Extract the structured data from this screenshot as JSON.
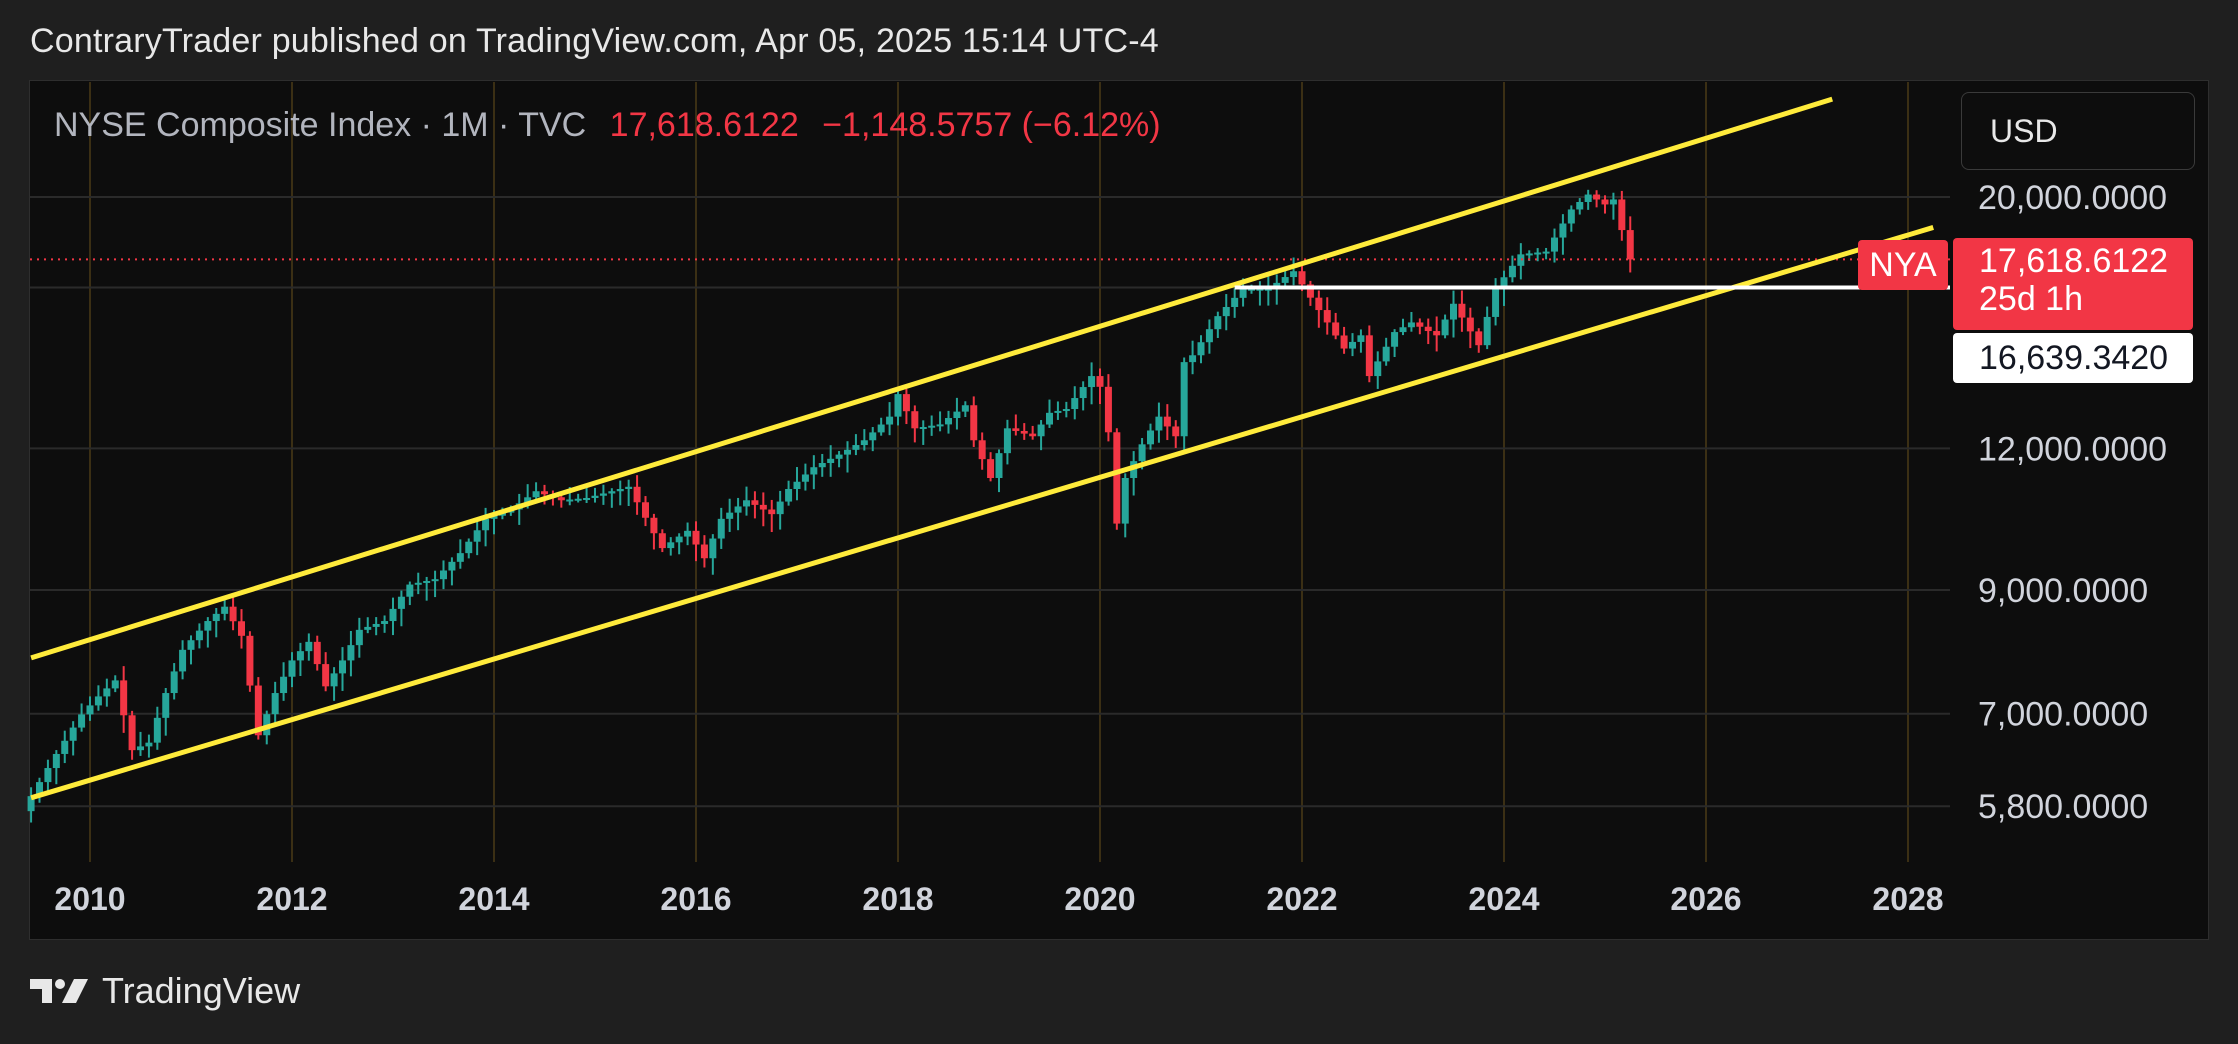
{
  "header": {
    "publisher": "ContraryTrader published on TradingView.com, Apr 05, 2025 15:14 UTC-4"
  },
  "legend": {
    "symbol": "NYSE Composite Index · 1M · TVC",
    "last": "17,618.6122",
    "change": "−1,148.5757 (−6.12%)"
  },
  "toolbar": {
    "currency": "USD"
  },
  "price_scale": {
    "ticks": [
      "20,000.0000",
      "12,000.0000",
      "9,000.0000",
      "7,000.0000",
      "5,800.0000"
    ],
    "symbol_tag": "NYA",
    "last_price": "17,618.6122",
    "countdown": "25d 1h",
    "line_price": "16,639.3420"
  },
  "footer": {
    "brand": "TradingView"
  },
  "colors": {
    "up": "#26a69a",
    "down": "#f23645",
    "channel": "#ffeb3b",
    "horizontal_line": "#ffffff",
    "grid": "#2a2a2a",
    "vertical_grid": "#3b2f14"
  },
  "chart_data": {
    "type": "candlestick",
    "interval": "1M",
    "scale": "log",
    "x_ticks": [
      "2010",
      "2012",
      "2014",
      "2016",
      "2018",
      "2020",
      "2022",
      "2024",
      "2026",
      "2028"
    ],
    "x_range": [
      "2009-06",
      "2028-04"
    ],
    "y_ticks": [
      20000,
      12000,
      9000,
      7000,
      5800
    ],
    "last_price": 17618.6122,
    "horizontal_line": {
      "price": 16639.342,
      "from": "2021-05"
    },
    "channel_upper": {
      "from": [
        "2009-06",
        7840
      ],
      "to": [
        "2027-04",
        24400
      ]
    },
    "channel_lower": {
      "from": [
        "2009-06",
        5900
      ],
      "to": [
        "2028-04",
        18800
      ]
    },
    "closes": [
      [
        "2009-06",
        5920
      ],
      [
        "2009-09",
        6450
      ],
      [
        "2009-12",
        6990
      ],
      [
        "2010-02",
        7250
      ],
      [
        "2010-04",
        7490
      ],
      [
        "2010-06",
        6500
      ],
      [
        "2010-08",
        6600
      ],
      [
        "2010-10",
        7300
      ],
      [
        "2010-12",
        7970
      ],
      [
        "2011-03",
        8450
      ],
      [
        "2011-05",
        8700
      ],
      [
        "2011-07",
        8200
      ],
      [
        "2011-09",
        6700
      ],
      [
        "2011-11",
        7300
      ],
      [
        "2012-01",
        7800
      ],
      [
        "2012-03",
        8100
      ],
      [
        "2012-05",
        7400
      ],
      [
        "2012-07",
        7800
      ],
      [
        "2012-09",
        8300
      ],
      [
        "2012-12",
        8450
      ],
      [
        "2013-03",
        9100
      ],
      [
        "2013-06",
        9200
      ],
      [
        "2013-09",
        9700
      ],
      [
        "2013-12",
        10400
      ],
      [
        "2014-03",
        10600
      ],
      [
        "2014-06",
        11000
      ],
      [
        "2014-09",
        10800
      ],
      [
        "2014-12",
        10850
      ],
      [
        "2015-03",
        11000
      ],
      [
        "2015-05",
        11100
      ],
      [
        "2015-08",
        10100
      ],
      [
        "2015-09",
        9800
      ],
      [
        "2015-12",
        10150
      ],
      [
        "2016-02",
        9600
      ],
      [
        "2016-04",
        10400
      ],
      [
        "2016-07",
        10800
      ],
      [
        "2016-10",
        10500
      ],
      [
        "2016-12",
        11050
      ],
      [
        "2017-03",
        11550
      ],
      [
        "2017-06",
        11850
      ],
      [
        "2017-09",
        12200
      ],
      [
        "2017-12",
        12800
      ],
      [
        "2018-01",
        13400
      ],
      [
        "2018-03",
        12500
      ],
      [
        "2018-06",
        12600
      ],
      [
        "2018-09",
        13100
      ],
      [
        "2018-10",
        12200
      ],
      [
        "2018-12",
        11300
      ],
      [
        "2019-02",
        12500
      ],
      [
        "2019-05",
        12300
      ],
      [
        "2019-07",
        12900
      ],
      [
        "2019-09",
        13000
      ],
      [
        "2019-12",
        13900
      ],
      [
        "2020-01",
        13600
      ],
      [
        "2020-02",
        12400
      ],
      [
        "2020-03",
        10300
      ],
      [
        "2020-04",
        11300
      ],
      [
        "2020-06",
        12100
      ],
      [
        "2020-08",
        12800
      ],
      [
        "2020-10",
        12300
      ],
      [
        "2020-11",
        14300
      ],
      [
        "2020-12",
        14500
      ],
      [
        "2021-03",
        15700
      ],
      [
        "2021-06",
        16600
      ],
      [
        "2021-09",
        16600
      ],
      [
        "2021-12",
        17200
      ],
      [
        "2022-02",
        16300
      ],
      [
        "2022-04",
        15500
      ],
      [
        "2022-06",
        14700
      ],
      [
        "2022-08",
        15100
      ],
      [
        "2022-09",
        13900
      ],
      [
        "2022-12",
        15200
      ],
      [
        "2023-02",
        15500
      ],
      [
        "2023-05",
        15100
      ],
      [
        "2023-07",
        16100
      ],
      [
        "2023-10",
        14800
      ],
      [
        "2023-12",
        16600
      ],
      [
        "2024-03",
        17800
      ],
      [
        "2024-06",
        17900
      ],
      [
        "2024-09",
        19500
      ],
      [
        "2024-11",
        20100
      ],
      [
        "2025-01",
        19700
      ],
      [
        "2025-02",
        19900
      ],
      [
        "2025-03",
        18700
      ],
      [
        "2025-04",
        17618
      ]
    ]
  }
}
